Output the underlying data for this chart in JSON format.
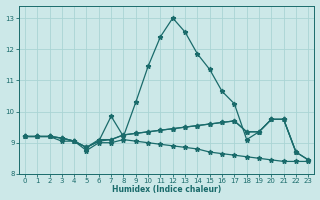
{
  "xlabel": "Humidex (Indice chaleur)",
  "bg_color": "#cce8e8",
  "grid_color": "#aad4d4",
  "line_color": "#1a6b6b",
  "xlim": [
    -0.5,
    23.5
  ],
  "ylim": [
    8.0,
    13.4
  ],
  "xticks": [
    0,
    1,
    2,
    3,
    4,
    5,
    6,
    7,
    8,
    9,
    10,
    11,
    12,
    13,
    14,
    15,
    16,
    17,
    18,
    19,
    20,
    21,
    22,
    23
  ],
  "yticks": [
    8,
    9,
    10,
    11,
    12,
    13
  ],
  "line1_x": [
    0,
    1,
    2,
    3,
    4,
    5,
    6,
    7,
    8,
    9,
    10,
    11,
    12,
    13,
    14,
    15,
    16,
    17,
    18,
    19,
    20,
    21,
    22
  ],
  "line1_y": [
    9.2,
    9.2,
    9.2,
    9.05,
    9.05,
    8.85,
    9.05,
    9.85,
    9.2,
    10.3,
    11.45,
    12.4,
    13.0,
    12.55,
    11.85,
    11.35,
    10.65,
    10.25,
    9.1,
    9.35,
    9.75,
    9.75,
    8.7
  ],
  "line2_x": [
    0,
    1,
    2,
    3,
    4,
    5,
    6,
    7,
    8,
    9,
    10,
    11,
    12,
    13,
    14,
    15,
    16,
    17,
    18,
    19,
    20,
    21,
    22,
    23
  ],
  "line2_y": [
    9.2,
    9.2,
    9.2,
    9.15,
    9.05,
    8.85,
    9.05,
    9.1,
    9.25,
    9.3,
    9.35,
    9.4,
    9.45,
    9.5,
    9.55,
    9.6,
    9.65,
    9.7,
    9.35,
    9.35,
    9.75,
    9.75,
    8.7,
    8.45
  ],
  "line3_x": [
    0,
    1,
    2,
    3,
    4,
    5,
    6,
    7,
    8,
    9,
    10,
    11,
    12,
    13,
    14,
    15,
    16,
    17,
    18,
    19,
    20,
    21,
    22,
    23
  ],
  "line3_y": [
    9.2,
    9.2,
    9.2,
    9.15,
    9.05,
    8.85,
    9.1,
    9.1,
    9.25,
    9.3,
    9.35,
    9.4,
    9.45,
    9.5,
    9.55,
    9.6,
    9.65,
    9.7,
    9.35,
    9.35,
    9.75,
    9.75,
    8.7,
    8.45
  ],
  "line4_x": [
    0,
    1,
    2,
    3,
    4,
    5,
    6,
    7,
    8,
    9,
    10,
    11,
    12,
    13,
    14,
    15,
    16,
    17,
    18,
    19,
    20,
    21,
    22,
    23
  ],
  "line4_y": [
    9.2,
    9.2,
    9.2,
    9.15,
    9.05,
    8.75,
    9.0,
    9.0,
    9.1,
    9.05,
    9.0,
    8.95,
    8.9,
    8.85,
    8.8,
    8.7,
    8.65,
    8.6,
    8.55,
    8.5,
    8.45,
    8.4,
    8.4,
    8.4
  ]
}
